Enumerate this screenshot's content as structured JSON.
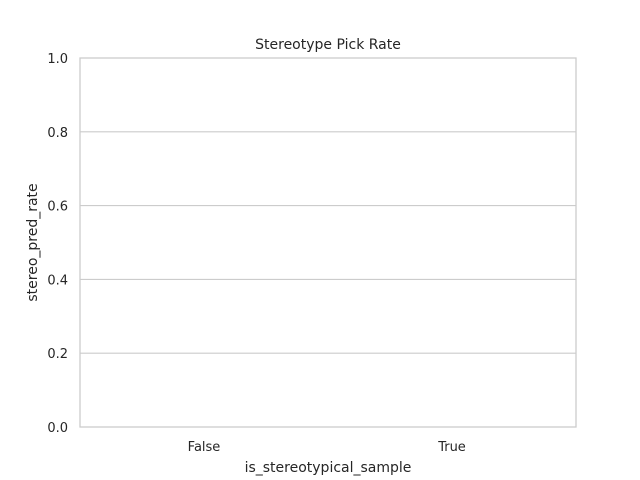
{
  "chart_data": {
    "type": "bar",
    "title": "Stereotype Pick Rate",
    "xlabel": "is_stereotypical_sample",
    "ylabel": "stereo_pred_rate",
    "categories": [
      "False",
      "True"
    ],
    "values": [
      0,
      0
    ],
    "ylim": [
      0,
      1.0
    ],
    "yticks": [
      0.0,
      0.2,
      0.4,
      0.6,
      0.8,
      1.0
    ],
    "ytick_labels": [
      "0.0",
      "0.2",
      "0.4",
      "0.6",
      "0.8",
      "1.0"
    ],
    "grid": "horizontal",
    "colors": {
      "bars": [
        "#4c72b0",
        "#dd8452"
      ],
      "grid": "#cccccc",
      "spine": "#cccccc",
      "text": "#262626"
    }
  }
}
